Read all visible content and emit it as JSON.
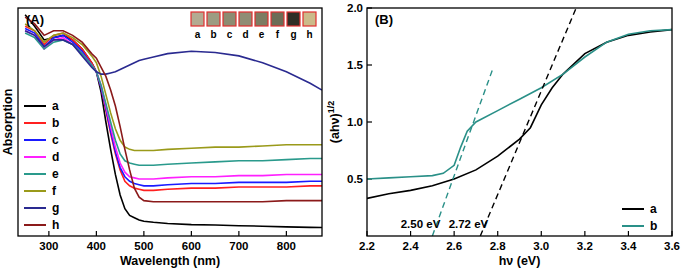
{
  "chart_data": [
    {
      "type": "line",
      "panel_label": "(A)",
      "xlabel": "Wavelength (nm)",
      "ylabel": "Absorption",
      "xlim": [
        235,
        875
      ],
      "ylim": [
        0,
        1
      ],
      "xticks": [
        300,
        400,
        500,
        600,
        700,
        800
      ],
      "tick_labels": "x",
      "grid": false,
      "legend": "left",
      "x": [
        250,
        270,
        290,
        310,
        330,
        350,
        370,
        390,
        400,
        410,
        420,
        430,
        440,
        450,
        460,
        470,
        480,
        490,
        500,
        520,
        550,
        600,
        650,
        700,
        750,
        800,
        850,
        875
      ],
      "series": [
        {
          "name": "a",
          "color": "#000000",
          "values": [
            0.97,
            0.92,
            0.86,
            0.87,
            0.88,
            0.86,
            0.82,
            0.76,
            0.72,
            0.63,
            0.5,
            0.38,
            0.27,
            0.18,
            0.12,
            0.09,
            0.08,
            0.07,
            0.065,
            0.06,
            0.055,
            0.05,
            0.048,
            0.045,
            0.043,
            0.04,
            0.038,
            0.037
          ]
        },
        {
          "name": "b",
          "color": "#ff2020",
          "values": [
            0.92,
            0.9,
            0.84,
            0.88,
            0.89,
            0.86,
            0.82,
            0.76,
            0.72,
            0.65,
            0.55,
            0.45,
            0.36,
            0.29,
            0.24,
            0.22,
            0.21,
            0.205,
            0.2,
            0.2,
            0.205,
            0.21,
            0.21,
            0.215,
            0.215,
            0.215,
            0.22,
            0.22
          ]
        },
        {
          "name": "c",
          "color": "#1a1aff",
          "values": [
            0.91,
            0.89,
            0.83,
            0.87,
            0.88,
            0.85,
            0.81,
            0.75,
            0.72,
            0.65,
            0.56,
            0.46,
            0.37,
            0.3,
            0.26,
            0.24,
            0.23,
            0.225,
            0.22,
            0.22,
            0.225,
            0.23,
            0.23,
            0.235,
            0.235,
            0.235,
            0.24,
            0.24
          ]
        },
        {
          "name": "d",
          "color": "#ff20ff",
          "values": [
            0.9,
            0.88,
            0.82,
            0.86,
            0.87,
            0.84,
            0.8,
            0.75,
            0.72,
            0.66,
            0.57,
            0.48,
            0.39,
            0.32,
            0.28,
            0.26,
            0.255,
            0.25,
            0.25,
            0.25,
            0.255,
            0.26,
            0.26,
            0.265,
            0.265,
            0.27,
            0.27,
            0.27
          ]
        },
        {
          "name": "e",
          "color": "#2a9a8c",
          "values": [
            0.89,
            0.87,
            0.82,
            0.85,
            0.86,
            0.84,
            0.8,
            0.75,
            0.72,
            0.66,
            0.58,
            0.5,
            0.42,
            0.36,
            0.33,
            0.32,
            0.315,
            0.31,
            0.31,
            0.31,
            0.315,
            0.32,
            0.325,
            0.33,
            0.33,
            0.335,
            0.34,
            0.34
          ]
        },
        {
          "name": "f",
          "color": "#9a9a1a",
          "values": [
            0.93,
            0.9,
            0.85,
            0.88,
            0.89,
            0.87,
            0.84,
            0.79,
            0.76,
            0.7,
            0.62,
            0.54,
            0.47,
            0.42,
            0.39,
            0.38,
            0.375,
            0.375,
            0.375,
            0.375,
            0.38,
            0.385,
            0.39,
            0.39,
            0.395,
            0.4,
            0.4,
            0.4
          ]
        },
        {
          "name": "g",
          "color": "#2a2a90",
          "values": [
            0.9,
            0.88,
            0.83,
            0.86,
            0.86,
            0.84,
            0.79,
            0.74,
            0.72,
            0.71,
            0.71,
            0.715,
            0.72,
            0.73,
            0.74,
            0.75,
            0.76,
            0.77,
            0.775,
            0.785,
            0.8,
            0.81,
            0.805,
            0.79,
            0.76,
            0.72,
            0.67,
            0.64
          ]
        },
        {
          "name": "h",
          "color": "#8b1a1a",
          "values": [
            0.96,
            0.93,
            0.88,
            0.9,
            0.9,
            0.88,
            0.85,
            0.8,
            0.78,
            0.74,
            0.7,
            0.64,
            0.57,
            0.48,
            0.38,
            0.29,
            0.21,
            0.17,
            0.155,
            0.15,
            0.15,
            0.15,
            0.15,
            0.15,
            0.15,
            0.155,
            0.155,
            0.155
          ]
        }
      ],
      "inset": {
        "labels": [
          "a",
          "b",
          "c",
          "d",
          "e",
          "f",
          "g",
          "h"
        ],
        "colors": [
          "#b3ab92",
          "#9c9c82",
          "#8c8c72",
          "#8f8d75",
          "#7c7c62",
          "#6c6c56",
          "#2e2e26",
          "#cbbb8a"
        ]
      }
    },
    {
      "type": "line",
      "panel_label": "(B)",
      "xlabel": "hν (eV)",
      "ylabel": "(ahν)",
      "ylabel_superscript": "1/2",
      "xlim": [
        2.2,
        3.6
      ],
      "ylim": [
        0,
        2.0
      ],
      "xticks": [
        2.2,
        2.4,
        2.6,
        2.8,
        {
          "value": 3,
          "label": "3.0"
        },
        3.2,
        3.4,
        3.6
      ],
      "yticks": [
        0.5,
        {
          "value": 1,
          "label": "1.0"
        },
        1.5,
        {
          "value": 2,
          "label": "2.0"
        }
      ],
      "grid": false,
      "legend": "lower right",
      "series": [
        {
          "name": "a",
          "color": "#000000",
          "x": [
            2.2,
            2.3,
            2.4,
            2.5,
            2.6,
            2.7,
            2.8,
            2.9,
            2.95,
            3.0,
            3.05,
            3.1,
            3.2,
            3.3,
            3.4,
            3.5,
            3.6
          ],
          "values": [
            0.33,
            0.37,
            0.4,
            0.44,
            0.5,
            0.58,
            0.7,
            0.85,
            0.95,
            1.15,
            1.3,
            1.42,
            1.6,
            1.7,
            1.76,
            1.79,
            1.81
          ]
        },
        {
          "name": "b",
          "color": "#2a9088",
          "x": [
            2.2,
            2.3,
            2.4,
            2.5,
            2.55,
            2.6,
            2.63,
            2.66,
            2.7,
            2.8,
            2.9,
            3.0,
            3.1,
            3.2,
            3.3,
            3.4,
            3.5,
            3.6
          ],
          "values": [
            0.5,
            0.51,
            0.52,
            0.53,
            0.55,
            0.62,
            0.78,
            0.92,
            1.0,
            1.1,
            1.2,
            1.3,
            1.42,
            1.57,
            1.7,
            1.77,
            1.8,
            1.81
          ]
        }
      ],
      "fit_lines": [
        {
          "label": "2.50 eV",
          "color": "#2a9088",
          "line_style": "dashed",
          "x": [
            2.5,
            2.78
          ],
          "values": [
            0,
            1.48
          ]
        },
        {
          "label": "2.72 eV",
          "color": "#000000",
          "line_style": "dashed",
          "x": [
            2.72,
            3.16
          ],
          "values": [
            0,
            2.0
          ]
        }
      ]
    }
  ]
}
